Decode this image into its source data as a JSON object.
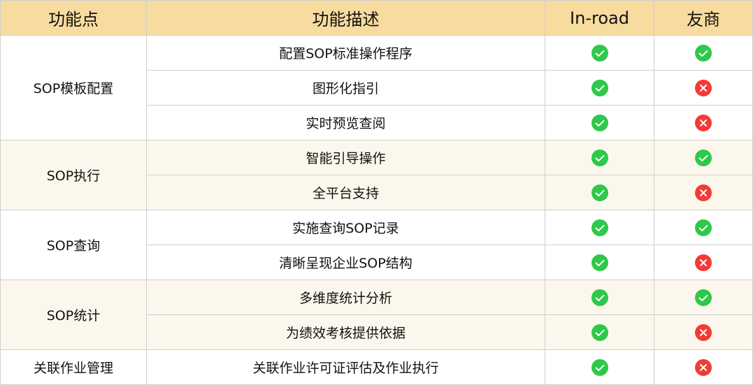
{
  "headers": [
    "功能点",
    "功能描述",
    "In-road",
    "友商"
  ],
  "colors": {
    "header_bg": "#f8db9e",
    "alt_row_bg": "#fcf7ec",
    "check": "#2ec84a",
    "cross": "#f43a36"
  },
  "groups": [
    {
      "feature": "SOP模板配置",
      "alt": false,
      "rows": [
        {
          "desc": "配置SOP标准操作程序",
          "inroad": "check-icon",
          "competitor": "check-icon"
        },
        {
          "desc": "图形化指引",
          "inroad": "check-icon",
          "competitor": "cross-icon"
        },
        {
          "desc": "实时预览查阅",
          "inroad": "check-icon",
          "competitor": "cross-icon"
        }
      ]
    },
    {
      "feature": "SOP执行",
      "alt": true,
      "rows": [
        {
          "desc": "智能引导操作",
          "inroad": "check-icon",
          "competitor": "check-icon"
        },
        {
          "desc": "全平台支持",
          "inroad": "check-icon",
          "competitor": "cross-icon"
        }
      ]
    },
    {
      "feature": "SOP查询",
      "alt": false,
      "rows": [
        {
          "desc": "实施查询SOP记录",
          "inroad": "check-icon",
          "competitor": "check-icon"
        },
        {
          "desc": "清晰呈现企业SOP结构",
          "inroad": "check-icon",
          "competitor": "cross-icon"
        }
      ]
    },
    {
      "feature": "SOP统计",
      "alt": true,
      "rows": [
        {
          "desc": "多维度统计分析",
          "inroad": "check-icon",
          "competitor": "check-icon"
        },
        {
          "desc": "为绩效考核提供依据",
          "inroad": "check-icon",
          "competitor": "cross-icon"
        }
      ]
    },
    {
      "feature": "关联作业管理",
      "alt": false,
      "rows": [
        {
          "desc": "关联作业许可证评估及作业执行",
          "inroad": "check-icon",
          "competitor": "cross-icon"
        }
      ]
    }
  ]
}
